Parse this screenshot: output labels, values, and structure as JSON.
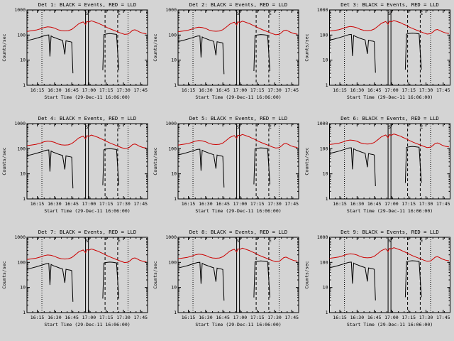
{
  "page": {
    "background_color": "#d4d4d4",
    "description": "3x3 grid of detector count-rate light curves"
  },
  "chart_data": {
    "type": "line",
    "layout": "3x3-grid",
    "shared": {
      "xlabel": "Start Time (29-Dec-11 16:06:00)",
      "ylabel": "Counts/sec",
      "x_unit": "minutes after 16:06",
      "x_range": [
        0,
        105
      ],
      "y_range": [
        1,
        1000
      ],
      "y_scale": "log",
      "grid": false,
      "legend_note": "BLACK = Events, RED = LLD",
      "series_colors": {
        "events": "#000000",
        "lld": "#cc0000"
      },
      "xticks": [
        {
          "min": 9,
          "label": "16:15"
        },
        {
          "min": 24,
          "label": "16:30"
        },
        {
          "min": 39,
          "label": "16:45"
        },
        {
          "min": 54,
          "label": "17:00"
        },
        {
          "min": 69,
          "label": "17:15"
        },
        {
          "min": 84,
          "label": "17:30"
        },
        {
          "min": 99,
          "label": "17:45"
        }
      ],
      "yticks": [
        {
          "v": 1,
          "label": "1"
        },
        {
          "v": 10,
          "label": "10"
        },
        {
          "v": 100,
          "label": "100"
        },
        {
          "v": 1000,
          "label": "1000"
        }
      ],
      "ref_lines": [
        {
          "x_min": 13,
          "style": "dotted"
        },
        {
          "x_min": 51,
          "style": "solid"
        },
        {
          "x_min": 53.5,
          "style": "solid"
        },
        {
          "x_min": 68,
          "style": "dashed"
        },
        {
          "x_min": 79,
          "style": "dashed"
        },
        {
          "x_min": 88,
          "style": "dotted"
        }
      ],
      "annotations": [
        {
          "x_min": 51,
          "label": "S"
        },
        {
          "x_min": 79,
          "label": "E"
        }
      ],
      "base_lld": [
        [
          0,
          140
        ],
        [
          4,
          148
        ],
        [
          8,
          158
        ],
        [
          12,
          178
        ],
        [
          15,
          200
        ],
        [
          18,
          212
        ],
        [
          21,
          205
        ],
        [
          24,
          188
        ],
        [
          27,
          163
        ],
        [
          30,
          150
        ],
        [
          33,
          146
        ],
        [
          36,
          150
        ],
        [
          39,
          168
        ],
        [
          42,
          215
        ],
        [
          45,
          280
        ],
        [
          47,
          310
        ],
        [
          49,
          335
        ],
        [
          51,
          260
        ],
        [
          52,
          345
        ],
        [
          54,
          330
        ],
        [
          56,
          368
        ],
        [
          58,
          345
        ],
        [
          60,
          320
        ],
        [
          62,
          298
        ],
        [
          64,
          268
        ],
        [
          66,
          245
        ],
        [
          68,
          220
        ],
        [
          70,
          198
        ],
        [
          73,
          172
        ],
        [
          76,
          152
        ],
        [
          79,
          134
        ],
        [
          82,
          118
        ],
        [
          85,
          106
        ],
        [
          88,
          110
        ],
        [
          90,
          128
        ],
        [
          92,
          155
        ],
        [
          94,
          162
        ],
        [
          96,
          148
        ],
        [
          98,
          132
        ],
        [
          101,
          118
        ],
        [
          104,
          112
        ]
      ],
      "base_events": [
        [
          0,
          60
        ],
        [
          4,
          66
        ],
        [
          8,
          74
        ],
        [
          12,
          84
        ],
        [
          15,
          93
        ],
        [
          17,
          99
        ],
        [
          19,
          101
        ],
        [
          20,
          14
        ],
        [
          21,
          92
        ],
        [
          23,
          82
        ],
        [
          25,
          76
        ],
        [
          27,
          70
        ],
        [
          29,
          65
        ],
        [
          31,
          61
        ],
        [
          33,
          17
        ],
        [
          34,
          59
        ],
        [
          36,
          56
        ],
        [
          38,
          54
        ],
        [
          39,
          52
        ],
        [
          40,
          3
        ],
        null,
        [
          66,
          4
        ],
        [
          67,
          104
        ],
        [
          69,
          110
        ],
        [
          72,
          114
        ],
        [
          75,
          111
        ],
        [
          78,
          106
        ],
        [
          80,
          4
        ]
      ]
    },
    "panels": [
      {
        "title": "Det 1: BLACK = Events, RED = LLD",
        "lld_scale": 1.0,
        "events_scale": 1.0
      },
      {
        "title": "Det 2: BLACK = Events, RED = LLD",
        "lld_scale": 0.97,
        "events_scale": 0.92
      },
      {
        "title": "Det 3: BLACK = Events, RED = LLD",
        "lld_scale": 1.03,
        "events_scale": 1.05
      },
      {
        "title": "Det 4: BLACK = Events, RED = LLD",
        "lld_scale": 0.95,
        "events_scale": 0.88
      },
      {
        "title": "Det 5: BLACK = Events, RED = LLD",
        "lld_scale": 1.0,
        "events_scale": 0.95
      },
      {
        "title": "Det 6: BLACK = Events, RED = LLD",
        "lld_scale": 1.05,
        "events_scale": 1.08
      },
      {
        "title": "Det 7: BLACK = Events, RED = LLD",
        "lld_scale": 0.93,
        "events_scale": 0.9
      },
      {
        "title": "Det 8: BLACK = Events, RED = LLD",
        "lld_scale": 1.0,
        "events_scale": 1.0
      },
      {
        "title": "Det 9: BLACK = Events, RED = LLD",
        "lld_scale": 1.04,
        "events_scale": 1.02
      }
    ]
  }
}
